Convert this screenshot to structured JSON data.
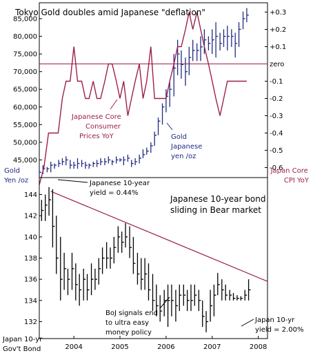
{
  "chart_data": [
    {
      "type": "ohlc-bar + line",
      "title": "Tokyo Gold doubles amid Japanese \"deflation\"",
      "left_axis": {
        "ticks": [
          45000,
          50000,
          55000,
          60000,
          65000,
          70000,
          75000,
          80000,
          85000
        ],
        "tick_labels": [
          "45,000",
          "50,000",
          "55,000",
          "60,000",
          "65,000",
          "70,000",
          "75,000",
          "80,000",
          "85,000"
        ],
        "range": [
          40000,
          89500
        ],
        "label": [
          "Gold",
          "Yen /oz"
        ]
      },
      "right_axis": {
        "ticks": [
          0.3,
          0.2,
          0.1,
          0,
          -0.1,
          -0.2,
          -0.3,
          -0.4,
          -0.5,
          -0.6
        ],
        "tick_labels": [
          "+0.3",
          "+0.2",
          "+0.1",
          "zero",
          "-0.1",
          "-0.2",
          "-0.3",
          "-0.4",
          "-0.5",
          "-0.6"
        ],
        "label": [
          "Japan Core",
          "CPI YoY"
        ]
      },
      "x_range": [
        2003.25,
        2008.2
      ],
      "zero_line": 0,
      "series": [
        {
          "name": "Japanese Core Consumer Prices YoY",
          "label_lines": [
            "Japanese Core",
            "Consumer",
            "Prices YoY"
          ],
          "color": "#9c1f4a",
          "axis": "right",
          "x": [
            2003.25,
            2003.35,
            2003.45,
            2003.58,
            2003.66,
            2003.75,
            2003.83,
            2003.92,
            2004.0,
            2004.08,
            2004.17,
            2004.25,
            2004.33,
            2004.42,
            2004.5,
            2004.58,
            2004.67,
            2004.75,
            2004.83,
            2004.92,
            2005.0,
            2005.08,
            2005.17,
            2005.25,
            2005.33,
            2005.42,
            2005.5,
            2005.58,
            2005.67,
            2005.75,
            2005.83,
            2005.92,
            2006.0,
            2006.08,
            2006.17,
            2006.25,
            2006.33,
            2006.42,
            2006.5,
            2006.58,
            2006.67,
            2006.75,
            2006.83,
            2006.92,
            2007.0,
            2007.08,
            2007.17,
            2007.25,
            2007.33,
            2007.42,
            2007.5,
            2007.58,
            2007.67,
            2007.75
          ],
          "values": [
            -0.7,
            -0.6,
            -0.4,
            -0.4,
            -0.4,
            -0.2,
            -0.1,
            -0.1,
            0.1,
            -0.1,
            -0.1,
            -0.2,
            -0.2,
            -0.1,
            -0.2,
            -0.2,
            -0.1,
            0.0,
            0.0,
            -0.1,
            -0.2,
            -0.1,
            -0.3,
            -0.2,
            -0.1,
            0.0,
            -0.2,
            -0.1,
            0.1,
            -0.2,
            -0.2,
            -0.2,
            -0.2,
            -0.1,
            0.0,
            0.1,
            0.1,
            0.2,
            0.3,
            0.2,
            0.3,
            0.2,
            0.1,
            0.0,
            -0.1,
            -0.2,
            -0.3,
            -0.2,
            -0.1,
            -0.1,
            -0.1,
            -0.1,
            -0.1,
            -0.1
          ]
        },
        {
          "name": "Gold Japanese yen /oz",
          "label_lines": [
            "Gold",
            "Japanese",
            "yen /oz"
          ],
          "color": "#1f2a80",
          "axis": "left",
          "style": "high-low bars",
          "x": [
            2003.25,
            2003.33,
            2003.42,
            2003.5,
            2003.58,
            2003.67,
            2003.75,
            2003.83,
            2003.92,
            2004.0,
            2004.08,
            2004.17,
            2004.25,
            2004.33,
            2004.42,
            2004.5,
            2004.58,
            2004.67,
            2004.75,
            2004.83,
            2004.92,
            2005.0,
            2005.08,
            2005.17,
            2005.25,
            2005.33,
            2005.42,
            2005.5,
            2005.58,
            2005.67,
            2005.75,
            2005.83,
            2005.92,
            2006.0,
            2006.08,
            2006.17,
            2006.25,
            2006.33,
            2006.42,
            2006.5,
            2006.58,
            2006.67,
            2006.75,
            2006.83,
            2006.92,
            2007.0,
            2007.08,
            2007.17,
            2007.25,
            2007.33,
            2007.42,
            2007.5,
            2007.58,
            2007.67,
            2007.75
          ],
          "high": [
            42500,
            43500,
            43000,
            44500,
            44000,
            45000,
            45500,
            46000,
            45000,
            44500,
            45500,
            45000,
            44500,
            44000,
            44500,
            45000,
            45500,
            45500,
            46000,
            45000,
            46000,
            45500,
            46000,
            46500,
            45000,
            45500,
            46500,
            48000,
            48500,
            50000,
            53000,
            57000,
            61000,
            65000,
            67000,
            75000,
            79000,
            76000,
            74000,
            77000,
            79000,
            78000,
            80000,
            82000,
            80000,
            82000,
            84000,
            81000,
            82000,
            83000,
            82000,
            81000,
            84000,
            87000,
            88000
          ],
          "low": [
            40000,
            41000,
            41500,
            41500,
            42500,
            43000,
            43500,
            43500,
            42500,
            42500,
            42500,
            43000,
            42500,
            42500,
            43000,
            43000,
            43500,
            43500,
            44000,
            43500,
            44000,
            44500,
            43500,
            44500,
            43000,
            43500,
            44000,
            45500,
            46500,
            47000,
            49000,
            52000,
            55000,
            58500,
            60000,
            63000,
            69000,
            68000,
            66000,
            69000,
            73000,
            73000,
            73000,
            75000,
            76000,
            75000,
            74000,
            76000,
            77000,
            76000,
            77000,
            74000,
            77000,
            82000,
            84000
          ],
          "close": [
            41500,
            42500,
            42500,
            43500,
            43500,
            44000,
            44500,
            45000,
            43500,
            43500,
            44000,
            44000,
            43500,
            43500,
            44000,
            44000,
            44500,
            44500,
            45000,
            44500,
            45000,
            45000,
            45000,
            45500,
            44000,
            44500,
            45500,
            46500,
            47500,
            49000,
            52000,
            56000,
            60000,
            63000,
            65000,
            71000,
            75000,
            72000,
            70000,
            74000,
            76000,
            76000,
            77000,
            79000,
            78000,
            79000,
            80000,
            78000,
            80000,
            80000,
            80000,
            78000,
            82000,
            85000,
            86000
          ]
        }
      ],
      "annotations": []
    },
    {
      "type": "ohlc-bar",
      "title": [
        "Japanese 10-year bond",
        "sliding in Bear market"
      ],
      "left_axis": {
        "ticks": [
          132,
          134,
          136,
          138,
          140,
          142,
          144
        ],
        "tick_labels": [
          "132",
          "134",
          "136",
          "138",
          "140",
          "142",
          "144"
        ],
        "range": [
          130.4,
          145.6
        ],
        "label": [
          "Japan 10-yr",
          "Gov't Bond"
        ]
      },
      "x_axis": {
        "ticks": [
          2004,
          2005,
          2006,
          2007,
          2008
        ],
        "tick_labels": [
          "2004",
          "2005",
          "2006",
          "2007",
          "2008"
        ],
        "range": [
          2003.25,
          2008.2
        ]
      },
      "series": [
        {
          "name": "Japan 10-yr Gov't Bond",
          "color": "#000000",
          "style": "high-low bars",
          "x": [
            2003.3,
            2003.38,
            2003.46,
            2003.54,
            2003.62,
            2003.71,
            2003.79,
            2003.87,
            2003.96,
            2004.04,
            2004.12,
            2004.21,
            2004.29,
            2004.38,
            2004.46,
            2004.54,
            2004.62,
            2004.71,
            2004.79,
            2004.87,
            2004.96,
            2005.04,
            2005.12,
            2005.21,
            2005.29,
            2005.38,
            2005.46,
            2005.54,
            2005.62,
            2005.71,
            2005.79,
            2005.87,
            2005.96,
            2006.04,
            2006.12,
            2006.21,
            2006.29,
            2006.38,
            2006.46,
            2006.54,
            2006.62,
            2006.71,
            2006.79,
            2006.87,
            2006.96,
            2007.04,
            2007.12,
            2007.21,
            2007.29,
            2007.38,
            2007.46,
            2007.54,
            2007.62,
            2007.71,
            2007.79
          ],
          "high": [
            143.5,
            144.0,
            144.7,
            144.5,
            142.0,
            140.0,
            138.5,
            137.0,
            138.5,
            137.5,
            136.5,
            137.0,
            136.5,
            137.5,
            137.0,
            138.0,
            139.0,
            139.5,
            139.0,
            140.0,
            141.0,
            140.5,
            141.3,
            141.0,
            140.0,
            138.5,
            138.0,
            138.0,
            137.5,
            136.5,
            135.5,
            134.5,
            135.0,
            135.5,
            135.5,
            135.0,
            135.5,
            135.5,
            135.0,
            135.5,
            135.5,
            135.0,
            134.0,
            133.0,
            135.0,
            135.5,
            136.6,
            136.0,
            135.5,
            135.0,
            134.7,
            134.5,
            134.4,
            135.0,
            136.0
          ],
          "low": [
            141.5,
            141.5,
            142.0,
            139.0,
            136.5,
            134.0,
            135.0,
            134.5,
            135.0,
            134.0,
            133.5,
            134.0,
            134.0,
            134.5,
            135.0,
            135.5,
            136.5,
            137.0,
            137.0,
            137.5,
            138.5,
            138.5,
            139.0,
            138.0,
            136.5,
            135.5,
            135.0,
            135.0,
            134.0,
            133.0,
            132.5,
            132.0,
            132.5,
            131.5,
            132.5,
            132.0,
            133.0,
            133.5,
            133.0,
            133.0,
            133.5,
            133.0,
            131.5,
            131.0,
            132.0,
            132.5,
            134.5,
            134.0,
            134.0,
            134.0,
            134.0,
            134.0,
            134.0,
            134.0,
            134.0
          ],
          "close": [
            142.5,
            143.0,
            143.5,
            141.0,
            138.0,
            136.0,
            137.0,
            136.0,
            137.0,
            135.5,
            135.0,
            136.0,
            135.0,
            136.0,
            136.0,
            137.0,
            138.0,
            138.0,
            138.0,
            139.0,
            140.0,
            139.5,
            140.0,
            139.0,
            137.5,
            136.5,
            136.0,
            136.5,
            135.0,
            134.0,
            133.5,
            133.0,
            134.0,
            134.0,
            134.0,
            133.5,
            134.5,
            134.5,
            134.0,
            134.0,
            134.5,
            134.0,
            132.5,
            132.0,
            133.5,
            134.5,
            135.5,
            135.0,
            134.5,
            134.5,
            134.2,
            134.2,
            134.2,
            134.5,
            135.0
          ]
        }
      ],
      "trendline": {
        "color": "#9c1f4a",
        "from": [
          2003.5,
          144.3
        ],
        "to": [
          2008.2,
          135.8
        ]
      },
      "annotations": [
        {
          "text": [
            "Japanese 10-year",
            "yield = 0.44%"
          ]
        },
        {
          "text": [
            "BoJ signals end",
            "to ultra easy",
            "money policy"
          ]
        },
        {
          "text": [
            "Japan 10-yr",
            "yield = 2.00%"
          ]
        }
      ]
    }
  ]
}
